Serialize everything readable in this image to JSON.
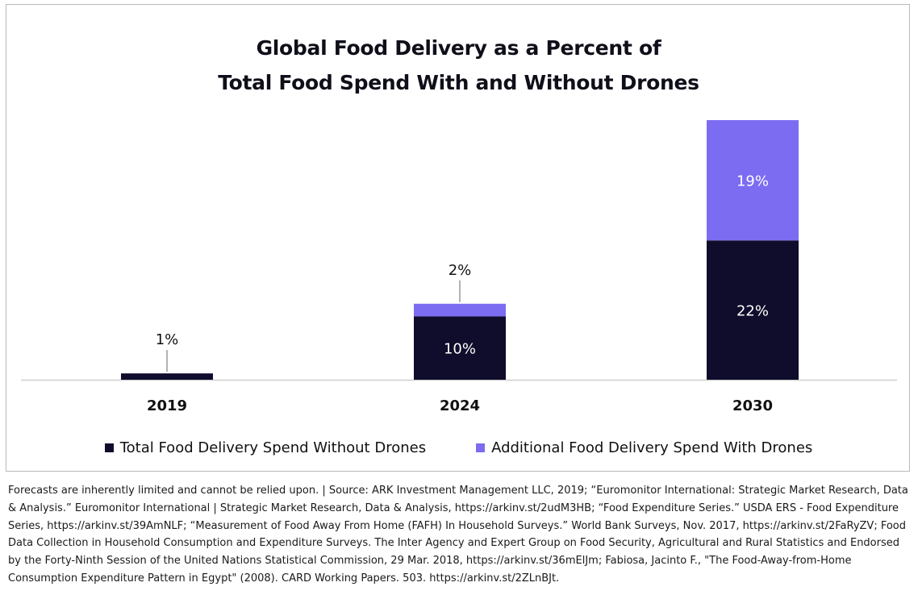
{
  "colors": {
    "without_drones": "#0f0d2b",
    "with_drones": "#7c6cf2",
    "axis": "#cfcfcf",
    "leader": "#8a8a8a",
    "text": "#111111"
  },
  "chart_data": {
    "type": "bar",
    "stacked": true,
    "title": "Global Food Delivery as a Percent of Total Food Spend With and Without Drones",
    "title_lines": [
      "Global Food Delivery as a Percent of",
      "Total Food Spend With and Without Drones"
    ],
    "categories": [
      "2019",
      "2024",
      "2030"
    ],
    "series": [
      {
        "name": "Total Food Delivery Spend Without Drones",
        "values": [
          1,
          10,
          22
        ],
        "labels": [
          "1%",
          "10%",
          "22%"
        ]
      },
      {
        "name": "Additional Food Delivery Spend With Drones",
        "values": [
          0,
          2,
          19
        ],
        "labels": [
          "",
          "2%",
          "19%"
        ]
      }
    ],
    "ylim": [
      0,
      41
    ],
    "xlabel": "",
    "ylabel": "",
    "grid": false,
    "legend_position": "bottom"
  },
  "footnote": "Forecasts are inherently limited and cannot be relied upon. |  Source: ARK Investment Management LLC, 2019; “Euromonitor International: Strategic Market Research, Data & Analysis.” Euromonitor International | Strategic Market Research, Data & Analysis, https://arkinv.st/2udM3HB; “Food Expenditure Series.” USDA ERS - Food Expenditure Series, https://arkinv.st/39AmNLF; “Measurement of  Food Away From Home (FAFH) In Household Surveys.” World Bank Surveys, Nov. 2017, https://arkinv.st/2FaRyZV; Food Data Collection in Household Consumption  and Expenditure Surveys. The Inter Agency and Expert Group on Food Security, Agricultural and Rural Statistics and Endorsed by the Forty-Ninth Session of the  United Nations Statistical Commission, 29 Mar. 2018, https://arkinv.st/36mElJm; Fabiosa, Jacinto F., \"The Food-Away-from-Home Consumption Expenditure Pattern in Egypt\" (2008). CARD Working Papers. 503. https://arkinv.st/2ZLnBJt."
}
